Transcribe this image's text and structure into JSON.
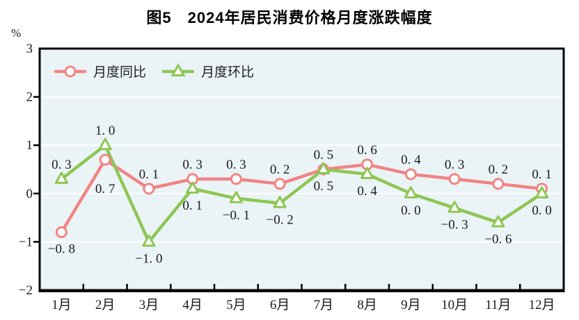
{
  "title": "图5　2024年居民消费价格月度涨跌幅度",
  "y_axis_unit": "%",
  "chart_data": {
    "type": "line",
    "title": "图5　2024年居民消费价格月度涨跌幅度",
    "categories": [
      "1月",
      "2月",
      "3月",
      "4月",
      "5月",
      "6月",
      "7月",
      "8月",
      "9月",
      "10月",
      "11月",
      "12月"
    ],
    "series": [
      {
        "id": "yoy",
        "name": "月度同比",
        "marker": "circle",
        "color": "#f18484",
        "values": [
          -0.8,
          0.7,
          0.1,
          0.3,
          0.3,
          0.2,
          0.5,
          0.6,
          0.4,
          0.3,
          0.2,
          0.1
        ],
        "label_positions": [
          "below",
          "below-far",
          "above",
          "above",
          "above",
          "above",
          "above",
          "above",
          "above",
          "above",
          "above",
          "above"
        ]
      },
      {
        "id": "mom",
        "name": "月度环比",
        "marker": "triangle",
        "color": "#8dc653",
        "values": [
          0.3,
          1.0,
          -1.0,
          0.1,
          -0.1,
          -0.2,
          0.5,
          0.4,
          0.0,
          -0.3,
          -0.6,
          0.0
        ],
        "label_positions": [
          "above",
          "above",
          "below",
          "below",
          "below",
          "below",
          "below",
          "below",
          "below",
          "below",
          "below",
          "below"
        ]
      }
    ],
    "ylim": [
      -2,
      3
    ],
    "yticks": [
      3,
      2,
      1,
      0,
      -1,
      -2
    ],
    "ylabel": "%",
    "grid": true,
    "grid_color": "#ffffff",
    "plot_bg_color": "#eaf3f6",
    "axis_color": "#000000",
    "label_color": "#1a1a1a",
    "legend_position": "top-left-inside"
  }
}
